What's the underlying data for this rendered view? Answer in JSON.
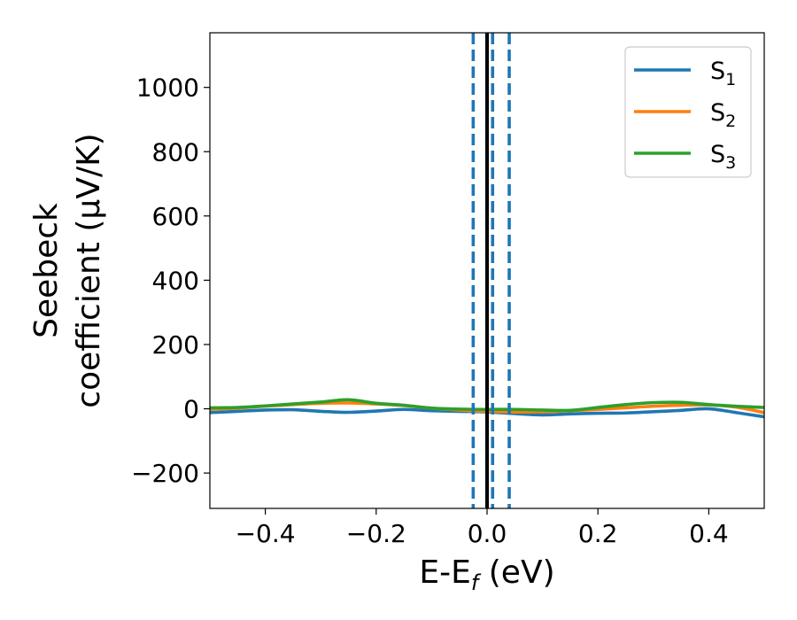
{
  "chart_data": {
    "type": "line",
    "xlabel_main": "E-E",
    "xlabel_sub": "f",
    "xlabel_unit": " (eV)",
    "ylabel_line1": "Seebeck",
    "ylabel_line2": "coefficient  (μV/K)",
    "xlim": [
      -0.5,
      0.5
    ],
    "ylim": [
      -310,
      1170
    ],
    "xticks": [
      -0.4,
      -0.2,
      0.0,
      0.2,
      0.4
    ],
    "xtick_labels": [
      "−0.4",
      "−0.2",
      "0.0",
      "0.2",
      "0.4"
    ],
    "yticks": [
      -200,
      0,
      200,
      400,
      600,
      800,
      1000
    ],
    "ytick_labels": [
      "−200",
      "0",
      "200",
      "400",
      "600",
      "800",
      "1000"
    ],
    "grid": false,
    "legend_position": "top-right",
    "vlines": [
      {
        "x": -0.025,
        "style": "dashed",
        "color": "#1f77b4"
      },
      {
        "x": 0.0,
        "style": "solid",
        "color": "#000000"
      },
      {
        "x": 0.01,
        "style": "dashed",
        "color": "#1f77b4"
      },
      {
        "x": 0.04,
        "style": "dashed",
        "color": "#1f77b4"
      }
    ],
    "x": [
      -0.5,
      -0.45,
      -0.4,
      -0.35,
      -0.3,
      -0.25,
      -0.2,
      -0.15,
      -0.1,
      -0.05,
      0.0,
      0.05,
      0.1,
      0.15,
      0.2,
      0.25,
      0.3,
      0.35,
      0.4,
      0.45,
      0.5
    ],
    "series": [
      {
        "name": "S",
        "sub": "1",
        "color": "#1f77b4",
        "values": [
          -12,
          -8,
          -4,
          -3,
          -8,
          -11,
          -7,
          -2,
          -6,
          -8,
          -10,
          -15,
          -19,
          -16,
          -14,
          -13,
          -9,
          -5,
          0,
          -12,
          -25
        ]
      },
      {
        "name": "S",
        "sub": "2",
        "color": "#ff7f0e",
        "values": [
          -2,
          2,
          8,
          13,
          17,
          18,
          15,
          10,
          2,
          -4,
          -8,
          -10,
          -9,
          -6,
          -2,
          3,
          8,
          11,
          12,
          5,
          -12
        ]
      },
      {
        "name": "S",
        "sub": "3",
        "color": "#2ca02c",
        "values": [
          3,
          4,
          9,
          15,
          21,
          28,
          17,
          11,
          2,
          -1,
          -2,
          -2,
          -4,
          -5,
          4,
          13,
          19,
          20,
          13,
          8,
          4
        ]
      }
    ]
  }
}
